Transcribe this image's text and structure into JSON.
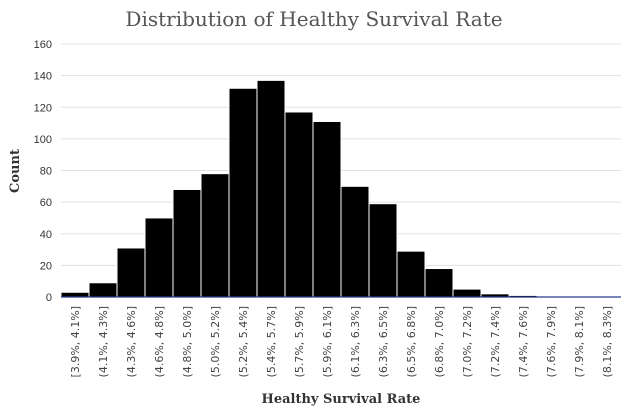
{
  "chart_data": {
    "type": "bar",
    "title": "Distribution of Healthy Survival Rate",
    "xlabel": "Healthy Survival Rate",
    "ylabel": "Count",
    "ylim": [
      0,
      160
    ],
    "yticks": [
      0,
      20,
      40,
      60,
      80,
      100,
      120,
      140,
      160
    ],
    "grid": true,
    "legend": "none",
    "bar_color": "#000000",
    "categories": [
      "[3.9%, 4.1%]",
      "(4.1%, 4.3%]",
      "(4.3%, 4.6%]",
      "(4.6%, 4.8%]",
      "(4.8%, 5.0%]",
      "(5.0%, 5.2%]",
      "(5.2%, 5.4%]",
      "(5.4%, 5.7%]",
      "(5.7%, 5.9%]",
      "(5.9%, 6.1%]",
      "(6.1%, 6.3%]",
      "(6.3%, 6.5%]",
      "(6.5%, 6.8%]",
      "(6.8%, 7.0%]",
      "(7.0%, 7.2%]",
      "(7.2%, 7.4%]",
      "(7.4%, 7.6%]",
      "(7.6%, 7.9%]",
      "(7.9%, 8.1%]",
      "(8.1%, 8.3%]"
    ],
    "values": [
      3,
      9,
      31,
      50,
      68,
      78,
      132,
      137,
      117,
      111,
      70,
      59,
      29,
      18,
      5,
      2,
      1,
      0.5,
      0,
      0.5
    ]
  }
}
